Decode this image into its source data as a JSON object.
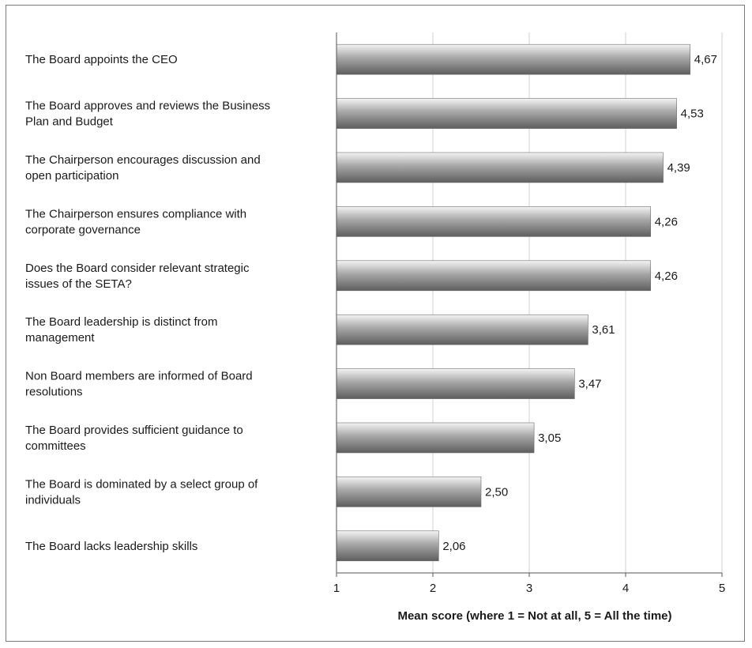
{
  "chart_data": {
    "type": "bar",
    "orientation": "horizontal",
    "title": "",
    "xlabel": "Mean score (where 1 = Not at all, 5 = All the time)",
    "ylabel": "",
    "xlim": [
      1,
      5
    ],
    "xticks": [
      "1",
      "2",
      "3",
      "4",
      "5"
    ],
    "grid": true,
    "categories": [
      [
        "The Board appoints the CEO"
      ],
      [
        "The Board approves and reviews the Business",
        "Plan and Budget"
      ],
      [
        "The Chairperson encourages discussion and",
        "open participation"
      ],
      [
        "The Chairperson ensures compliance with",
        "corporate governance"
      ],
      [
        "Does the Board consider relevant strategic",
        "issues of the SETA?"
      ],
      [
        "The Board leadership is distinct from",
        "management"
      ],
      [
        "Non Board members are informed of Board",
        "resolutions"
      ],
      [
        "The Board provides sufficient guidance to",
        "committees"
      ],
      [
        "The Board is dominated by a select group of",
        "individuals"
      ],
      [
        "The Board lacks leadership skills"
      ]
    ],
    "values": [
      4.67,
      4.53,
      4.39,
      4.26,
      4.26,
      3.61,
      3.47,
      3.05,
      2.5,
      2.06
    ],
    "value_labels": [
      "4,67",
      "4,53",
      "4,39",
      "4,26",
      "4,26",
      "3,61",
      "3,47",
      "3,05",
      "2,50",
      "2,06"
    ],
    "colors": {
      "bar_light": "#f4f4f4",
      "bar_mid": "#a6a6a6",
      "bar_dark": "#5e5e5e",
      "grid": "#d0d0d0",
      "axis": "#555555",
      "text": "#1a1a1a"
    }
  }
}
